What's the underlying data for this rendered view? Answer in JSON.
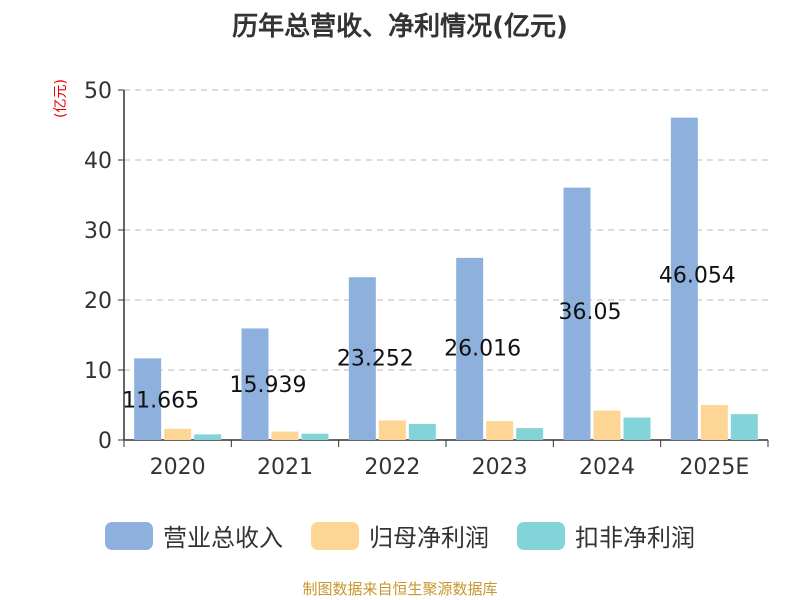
{
  "chart_data": {
    "type": "bar",
    "title": "历年总营收、净利情况(亿元)",
    "y_unit_label": "(亿元)",
    "categories": [
      "2020",
      "2021",
      "2022",
      "2023",
      "2024",
      "2025E"
    ],
    "series": [
      {
        "name": "营业总收入",
        "color": "#8eb0dc",
        "values": [
          11.665,
          15.939,
          23.252,
          26.016,
          36.05,
          46.054
        ]
      },
      {
        "name": "归母净利润",
        "color": "#fdd695",
        "values": [
          1.6,
          1.2,
          2.8,
          2.7,
          4.2,
          5.0
        ]
      },
      {
        "name": "扣非净利润",
        "color": "#83d4d8",
        "values": [
          0.8,
          0.9,
          2.3,
          1.7,
          3.2,
          3.7
        ]
      }
    ],
    "data_labels": [
      "11.665",
      "15.939",
      "23.252",
      "26.016",
      "36.05",
      "46.054"
    ],
    "yticks": [
      0,
      10,
      20,
      30,
      40,
      50
    ],
    "ylim": [
      0,
      50
    ],
    "grid": true,
    "legend_position": "bottom"
  },
  "footer": "制图数据来自恒生聚源数据库"
}
